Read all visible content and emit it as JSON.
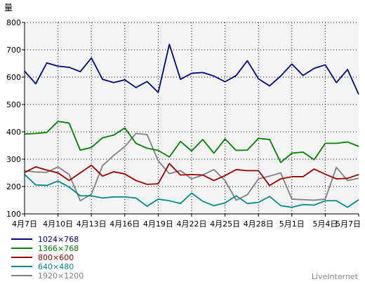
{
  "chart_data": {
    "type": "line",
    "ylabel": "量",
    "ylim": [
      100,
      800
    ],
    "yticks": [
      100,
      200,
      300,
      400,
      500,
      600,
      700,
      800
    ],
    "grid": true,
    "legend_position": "bottom-left",
    "watermark": "LiveInternet",
    "x": [
      "4月7日",
      "4月8日",
      "4月9日",
      "4月10日",
      "4月11日",
      "4月12日",
      "4月13日",
      "4月14日",
      "4月15日",
      "4月16日",
      "4月17日",
      "4月18日",
      "4月19日",
      "4月20日",
      "4月21日",
      "4月22日",
      "4月23日",
      "4月24日",
      "4月25日",
      "4月26日",
      "4月27日",
      "4月28日",
      "4月29日",
      "4月30日",
      "5月1日",
      "5月2日",
      "5月3日",
      "5月4日",
      "5月5日",
      "5月6日",
      "5月7日"
    ],
    "x_tick_labels": [
      "4月7日",
      "4月10日",
      "4月13日",
      "4月16日",
      "4月19日",
      "4月22日",
      "4月25日",
      "4月28日",
      "5月1日",
      "5月4日",
      "5月7日"
    ],
    "series": [
      {
        "name": "1024×768",
        "color": "#000080",
        "values": [
          622,
          576,
          652,
          640,
          636,
          620,
          670,
          592,
          580,
          590,
          562,
          584,
          544,
          720,
          592,
          614,
          617,
          604,
          583,
          606,
          660,
          594,
          568,
          604,
          648,
          606,
          632,
          645,
          580,
          628,
          537
        ]
      },
      {
        "name": "1366×768",
        "color": "#008000",
        "values": [
          392,
          394,
          398,
          438,
          432,
          333,
          343,
          378,
          388,
          414,
          358,
          340,
          332,
          308,
          365,
          330,
          372,
          322,
          374,
          332,
          333,
          376,
          372,
          288,
          322,
          326,
          298,
          358,
          358,
          363,
          347
        ]
      },
      {
        "name": "800×600",
        "color": "#990000",
        "values": [
          251,
          272,
          260,
          250,
          222,
          250,
          278,
          238,
          254,
          246,
          222,
          208,
          210,
          284,
          242,
          244,
          242,
          222,
          240,
          262,
          258,
          258,
          204,
          228,
          236,
          236,
          264,
          245,
          228,
          230,
          244
        ]
      },
      {
        "name": "640×480",
        "color": "#008b8b",
        "values": [
          244,
          206,
          204,
          220,
          198,
          166,
          166,
          158,
          162,
          162,
          158,
          128,
          154,
          148,
          138,
          176,
          146,
          130,
          140,
          166,
          138,
          142,
          164,
          130,
          124,
          134,
          132,
          148,
          148,
          124,
          152
        ]
      },
      {
        "name": "1920×1200",
        "color": "#808080",
        "values": [
          258,
          253,
          252,
          272,
          244,
          148,
          172,
          276,
          314,
          346,
          394,
          390,
          294,
          247,
          258,
          228,
          242,
          262,
          222,
          150,
          170,
          228,
          238,
          250,
          154,
          152,
          150,
          154,
          270,
          222,
          230
        ]
      }
    ]
  }
}
